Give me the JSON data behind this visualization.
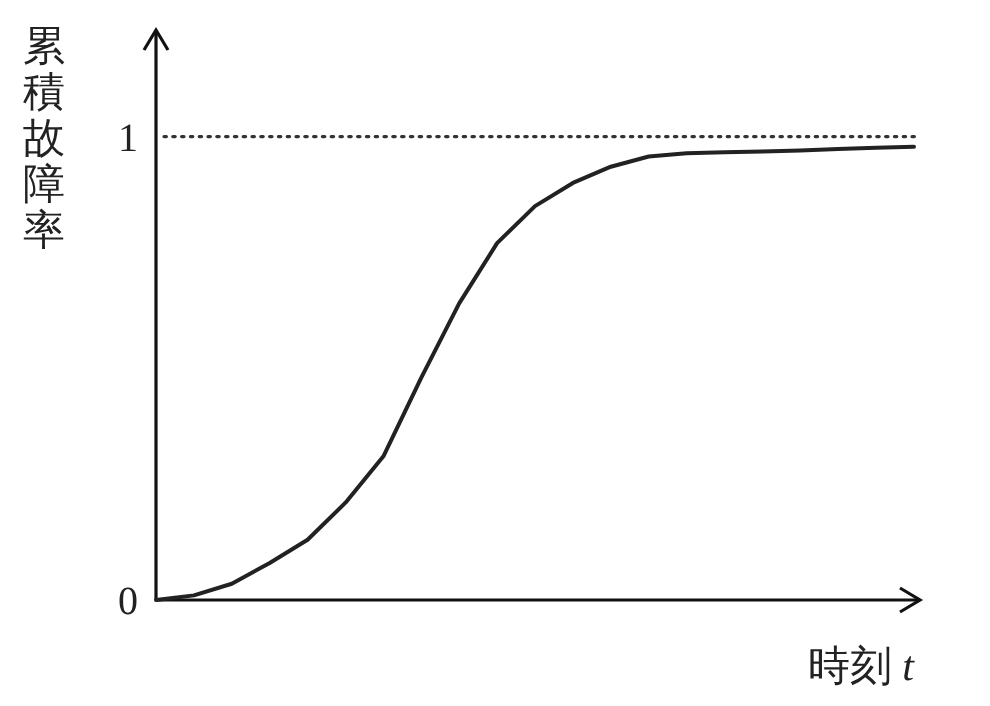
{
  "chart_data": {
    "type": "line",
    "xlabel": "時刻 *t*",
    "ylabel": "累積故障率",
    "categories": [
      null,
      null,
      null,
      null,
      null,
      null,
      null,
      null,
      null,
      null,
      null,
      null,
      null,
      null,
      null,
      null,
      null,
      null,
      null,
      null,
      null
    ],
    "series": [
      {
        "color": "#222222",
        "values": [
          0,
          0.01,
          0.035,
          0.08,
          0.13,
          0.21,
          0.31,
          0.48,
          0.64,
          0.77,
          0.85,
          0.9,
          0.935,
          0.957,
          0.964,
          0.966,
          0.968,
          0.97,
          0.973,
          0.976,
          0.978
        ]
      }
    ],
    "ylim": [
      0,
      1.23
    ],
    "yticks": [
      0,
      1
    ],
    "ref_lines": [
      {
        "axis": "y",
        "value": 1,
        "line_style": "dotted",
        "color": "#333333"
      }
    ],
    "tick_labels": "y",
    "marker": "none",
    "line_style": "solid",
    "grid": false
  }
}
